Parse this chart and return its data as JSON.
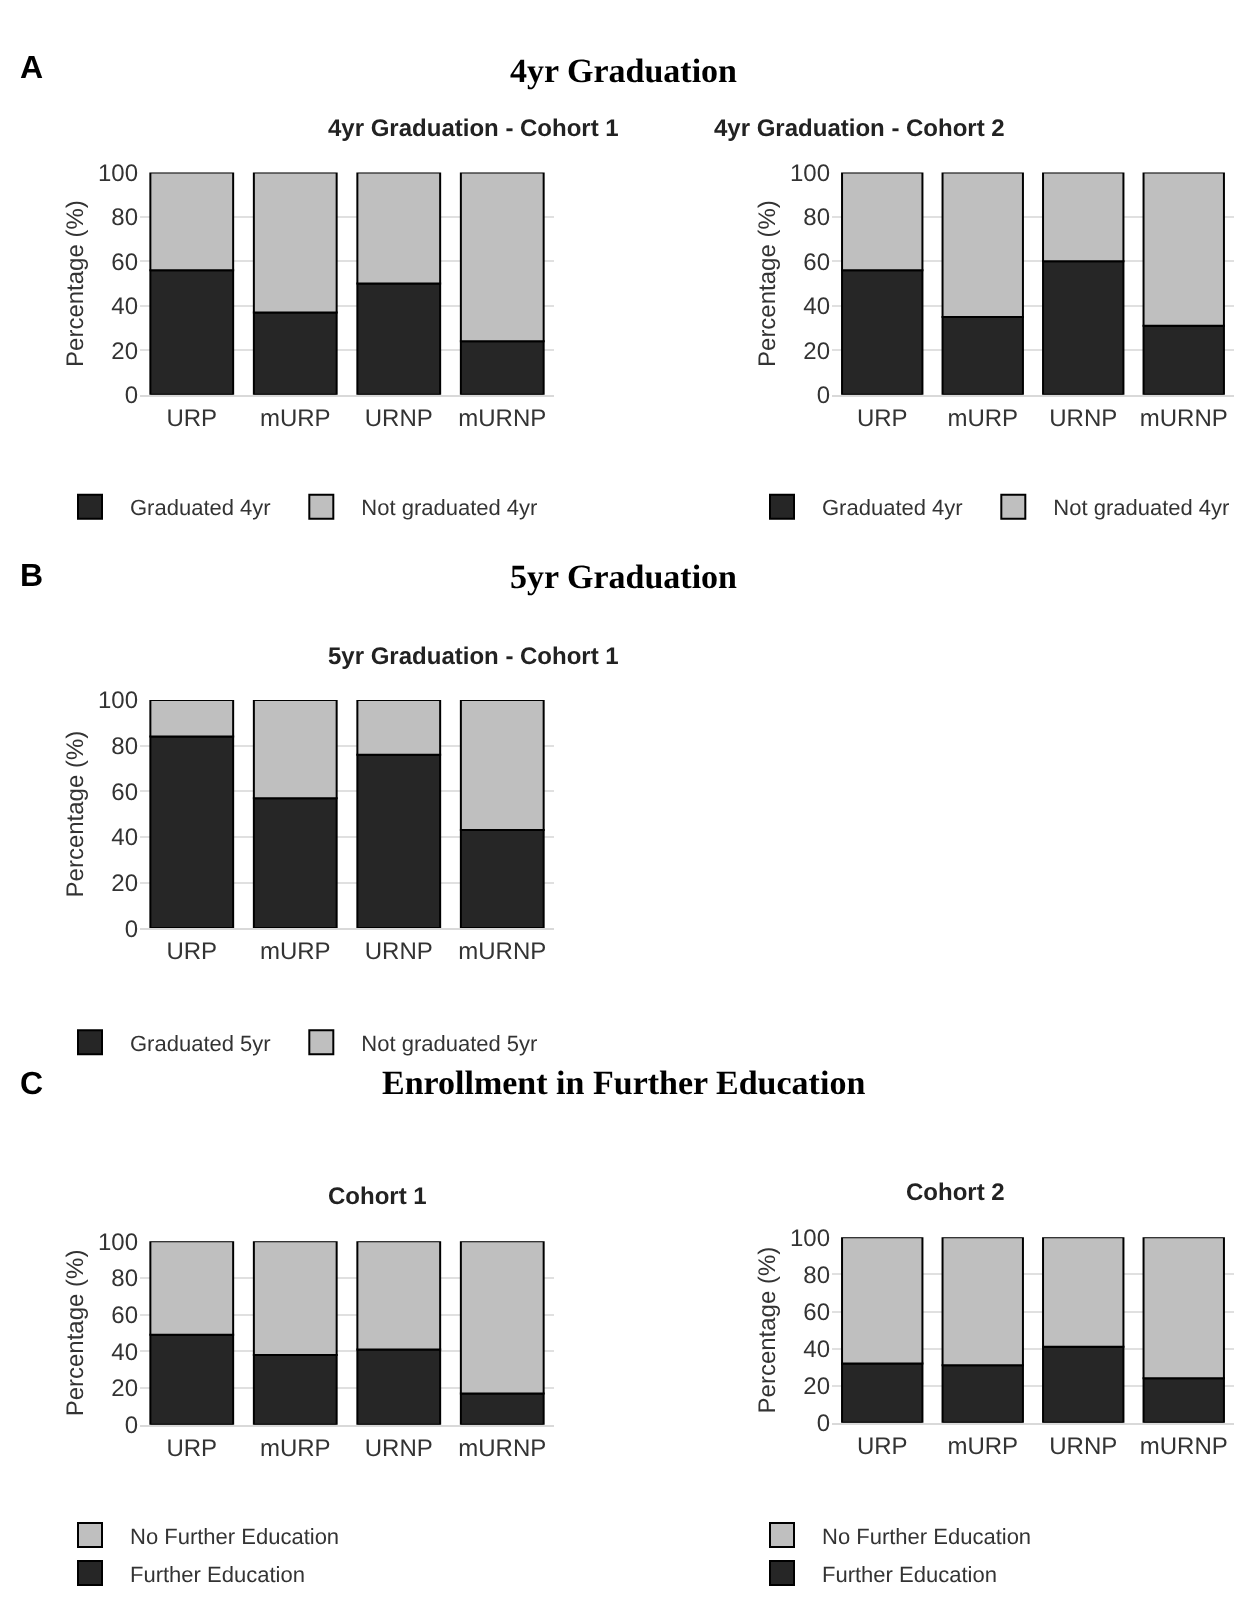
{
  "chart_data": [
    {
      "type": "bar",
      "stacked": true,
      "title": "4yr Graduation - Cohort 1",
      "annotations": [
        "A",
        "4yr Graduation"
      ],
      "ylabel": "Percentage (%)",
      "categories": [
        "URP",
        "mURP",
        "URNP",
        "mURNP"
      ],
      "ylim": [
        0,
        100
      ],
      "yticks": [
        0,
        20,
        40,
        60,
        80,
        100
      ],
      "grid": "y",
      "legend": "bottom",
      "series": [
        {
          "name": "Graduated 4yr",
          "color": "#262626",
          "values": [
            56,
            37,
            50,
            24
          ]
        },
        {
          "name": "Not graduated 4yr",
          "color": "#bfbfbf",
          "values": [
            44,
            63,
            50,
            76
          ]
        }
      ]
    },
    {
      "type": "bar",
      "stacked": true,
      "title": "4yr Graduation - Cohort 2",
      "ylabel": "Percentage (%)",
      "categories": [
        "URP",
        "mURP",
        "URNP",
        "mURNP"
      ],
      "ylim": [
        0,
        100
      ],
      "yticks": [
        0,
        20,
        40,
        60,
        80,
        100
      ],
      "grid": "y",
      "legend": "bottom",
      "series": [
        {
          "name": "Graduated 4yr",
          "color": "#262626",
          "values": [
            56,
            35,
            60,
            31
          ]
        },
        {
          "name": "Not graduated 4yr",
          "color": "#bfbfbf",
          "values": [
            44,
            65,
            40,
            69
          ]
        }
      ]
    },
    {
      "type": "bar",
      "stacked": true,
      "title": "5yr Graduation - Cohort 1",
      "annotations": [
        "B",
        "5yr Graduation"
      ],
      "ylabel": "Percentage (%)",
      "categories": [
        "URP",
        "mURP",
        "URNP",
        "mURNP"
      ],
      "ylim": [
        0,
        100
      ],
      "yticks": [
        0,
        20,
        40,
        60,
        80,
        100
      ],
      "grid": "y",
      "legend": "bottom",
      "series": [
        {
          "name": "Graduated 5yr",
          "color": "#262626",
          "values": [
            84,
            57,
            76,
            43
          ]
        },
        {
          "name": "Not graduated 5yr",
          "color": "#bfbfbf",
          "values": [
            16,
            43,
            24,
            57
          ]
        }
      ]
    },
    {
      "type": "bar",
      "stacked": true,
      "title": "Cohort 1",
      "annotations": [
        "C",
        "Enrollment in Further Education"
      ],
      "ylabel": "Percentage (%)",
      "categories": [
        "URP",
        "mURP",
        "URNP",
        "mURNP"
      ],
      "ylim": [
        0,
        100
      ],
      "yticks": [
        0,
        20,
        40,
        60,
        80,
        100
      ],
      "grid": "y",
      "legend": "bottom",
      "series": [
        {
          "name": "Further Education",
          "color": "#262626",
          "values": [
            49,
            38,
            41,
            17
          ]
        },
        {
          "name": "No Further Education",
          "color": "#bfbfbf",
          "values": [
            51,
            62,
            59,
            83
          ]
        }
      ]
    },
    {
      "type": "bar",
      "stacked": true,
      "title": "Cohort 2",
      "ylabel": "Percentage (%)",
      "categories": [
        "URP",
        "mURP",
        "URNP",
        "mURNP"
      ],
      "ylim": [
        0,
        100
      ],
      "yticks": [
        0,
        20,
        40,
        60,
        80,
        100
      ],
      "grid": "y",
      "legend": "bottom",
      "series": [
        {
          "name": "Further Education",
          "color": "#262626",
          "values": [
            32,
            31,
            41,
            24
          ]
        },
        {
          "name": "No Further Education",
          "color": "#bfbfbf",
          "values": [
            68,
            69,
            59,
            76
          ]
        }
      ]
    }
  ]
}
